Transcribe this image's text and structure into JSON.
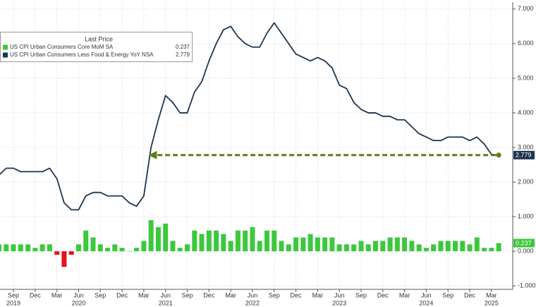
{
  "chart_data": {
    "type": "combo",
    "legend_title": "Last Price",
    "categories": [
      null,
      null,
      "Sep",
      null,
      null,
      "Dec",
      null,
      null,
      "Mar",
      null,
      null,
      "Jun",
      null,
      null,
      "Sep",
      null,
      null,
      "Dec",
      null,
      null,
      "Mar",
      null,
      null,
      "Jun",
      null,
      null,
      "Sep",
      null,
      null,
      "Dec",
      null,
      null,
      "Mar",
      null,
      null,
      "Jun",
      null,
      null,
      "Sep",
      null,
      null,
      "Dec",
      null,
      null,
      "Mar",
      null,
      null,
      "Jun",
      null,
      null,
      "Sep",
      null,
      null,
      "Dec",
      null,
      null,
      "Mar",
      null,
      null,
      "Jun",
      null,
      null,
      "Sep",
      null,
      null,
      "Dec",
      null,
      null,
      "Mar",
      null
    ],
    "years": [
      null,
      null,
      "2019",
      null,
      null,
      null,
      null,
      null,
      null,
      null,
      null,
      "2020",
      null,
      null,
      null,
      null,
      null,
      null,
      null,
      null,
      null,
      null,
      null,
      "2021",
      null,
      null,
      null,
      null,
      null,
      null,
      null,
      null,
      null,
      null,
      null,
      "2022",
      null,
      null,
      null,
      null,
      null,
      null,
      null,
      null,
      null,
      null,
      null,
      "2023",
      null,
      null,
      null,
      null,
      null,
      null,
      null,
      null,
      null,
      null,
      null,
      "2024",
      null,
      null,
      null,
      null,
      null,
      null,
      null,
      null,
      "2025",
      null
    ],
    "series": [
      {
        "name": "US CPI Urban Consumers Core MoM SA",
        "type": "bar",
        "color": "#3cc83c",
        "negative_color": "#e3141b",
        "values": [
          0.2,
          0.2,
          0.2,
          0.2,
          0.2,
          0.1,
          0.2,
          0.2,
          -0.1,
          -0.45,
          -0.1,
          0.2,
          0.6,
          0.4,
          0.2,
          0.1,
          0.2,
          0.1,
          0.0,
          0.1,
          0.3,
          0.9,
          0.7,
          0.8,
          0.3,
          0.1,
          0.2,
          0.6,
          0.5,
          0.6,
          0.6,
          0.5,
          0.3,
          0.6,
          0.6,
          0.7,
          0.3,
          0.6,
          0.6,
          0.3,
          0.2,
          0.4,
          0.4,
          0.5,
          0.4,
          0.4,
          0.4,
          0.2,
          0.2,
          0.2,
          0.3,
          0.2,
          0.3,
          0.3,
          0.4,
          0.4,
          0.4,
          0.3,
          0.2,
          0.1,
          0.2,
          0.3,
          0.3,
          0.3,
          0.3,
          0.2,
          0.4,
          0.1,
          0.1,
          0.237
        ]
      },
      {
        "name": "US CPI Urban Consumers Less Food & Energy YoY NSA",
        "type": "line",
        "color": "#1c3550",
        "values": [
          2.2,
          2.4,
          2.4,
          2.3,
          2.3,
          2.3,
          2.3,
          2.4,
          2.1,
          1.4,
          1.2,
          1.2,
          1.6,
          1.7,
          1.7,
          1.6,
          1.6,
          1.6,
          1.4,
          1.3,
          1.6,
          3.0,
          3.8,
          4.5,
          4.3,
          4.0,
          4.0,
          4.6,
          4.9,
          5.5,
          6.0,
          6.4,
          6.5,
          6.2,
          6.0,
          5.9,
          5.9,
          6.3,
          6.6,
          6.3,
          6.0,
          5.7,
          5.6,
          5.5,
          5.6,
          5.5,
          5.3,
          4.8,
          4.7,
          4.3,
          4.1,
          4.0,
          4.0,
          3.9,
          3.9,
          3.8,
          3.8,
          3.6,
          3.4,
          3.3,
          3.2,
          3.2,
          3.3,
          3.3,
          3.3,
          3.2,
          3.3,
          3.1,
          2.8,
          2.779
        ]
      }
    ],
    "ylim": [
      -1.1,
      7.2
    ],
    "yticks": [
      {
        "value": -1,
        "label": "-1.000"
      },
      {
        "value": 0,
        "label": "0.000"
      },
      {
        "value": 1,
        "label": "1.000"
      },
      {
        "value": 2,
        "label": "2.000"
      },
      {
        "value": 3,
        "label": "3.000"
      },
      {
        "value": 4,
        "label": "4.000"
      },
      {
        "value": 5,
        "label": "5.000"
      },
      {
        "value": 6,
        "label": "6.000"
      },
      {
        "value": 7,
        "label": "7.000"
      }
    ],
    "grid": true,
    "arrow_color": "#5b7f1a"
  }
}
